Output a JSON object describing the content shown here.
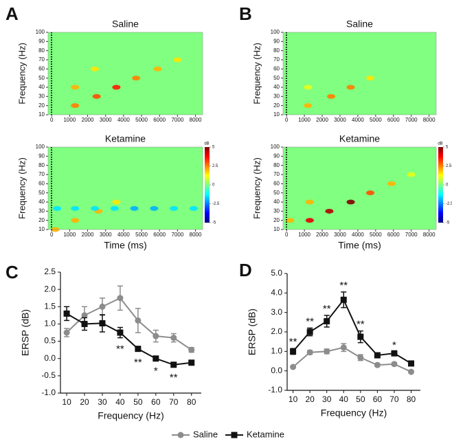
{
  "chart_data": [
    {
      "type": "heatmap",
      "panel": "A",
      "title": "Saline",
      "ylabel": "Frequency (Hz)",
      "xlim": [
        -200,
        8400
      ],
      "xticks": [
        0,
        1000,
        2000,
        3000,
        4000,
        5000,
        6000,
        7000,
        8000
      ],
      "ylim": [
        10,
        100
      ],
      "yticks": [
        10,
        20,
        30,
        40,
        50,
        60,
        70,
        80,
        90,
        100
      ],
      "clim": [
        -5,
        5
      ],
      "spots": [
        {
          "x": 1300,
          "y": 20,
          "value": 2.5
        },
        {
          "x": 1300,
          "y": 40,
          "value": 2
        },
        {
          "x": 2500,
          "y": 30,
          "value": 3
        },
        {
          "x": 3600,
          "y": 40,
          "value": 3.5
        },
        {
          "x": 4700,
          "y": 50,
          "value": 2.5
        },
        {
          "x": 5900,
          "y": 60,
          "value": 2
        },
        {
          "x": 7000,
          "y": 70,
          "value": 1.5
        },
        {
          "x": 2400,
          "y": 60,
          "value": 1.5
        }
      ]
    },
    {
      "type": "heatmap",
      "title": "Ketamine",
      "ylabel": "Frequency (Hz)",
      "xlabel": "Time (ms)",
      "xlim": [
        -200,
        8400
      ],
      "xticks": [
        0,
        1000,
        2000,
        3000,
        4000,
        5000,
        6000,
        7000,
        8000
      ],
      "ylim": [
        10,
        100
      ],
      "yticks": [
        10,
        20,
        30,
        40,
        50,
        60,
        70,
        80,
        90,
        100
      ],
      "clim": [
        -5,
        5
      ],
      "clabel": "dB",
      "cticks": [
        5,
        2.5,
        0,
        -2.5,
        -5
      ],
      "spots": [
        {
          "x": 1300,
          "y": 20,
          "value": 2
        },
        {
          "x": 2600,
          "y": 30,
          "value": 2
        },
        {
          "x": 3600,
          "y": 40,
          "value": 1.5
        },
        {
          "x": 200,
          "y": 10,
          "value": 2
        },
        {
          "x": 300,
          "y": 33,
          "value": -1.5
        },
        {
          "x": 1300,
          "y": 33,
          "value": -1.5
        },
        {
          "x": 2400,
          "y": 33,
          "value": -1.5
        },
        {
          "x": 3500,
          "y": 33,
          "value": -1.5
        },
        {
          "x": 4600,
          "y": 33,
          "value": -2
        },
        {
          "x": 5700,
          "y": 33,
          "value": -2
        },
        {
          "x": 6800,
          "y": 33,
          "value": -1.5
        },
        {
          "x": 7900,
          "y": 33,
          "value": -1.5
        }
      ]
    },
    {
      "type": "heatmap",
      "panel": "B",
      "title": "Saline",
      "ylabel": "Frequency (Hz)",
      "xlim": [
        -200,
        8400
      ],
      "xticks": [
        0,
        1000,
        2000,
        3000,
        4000,
        5000,
        6000,
        7000,
        8000
      ],
      "ylim": [
        10,
        100
      ],
      "yticks": [
        10,
        20,
        30,
        40,
        50,
        60,
        70,
        80,
        90,
        100
      ],
      "clim": [
        -5,
        5
      ],
      "spots": [
        {
          "x": 1200,
          "y": 20,
          "value": 2
        },
        {
          "x": 2500,
          "y": 30,
          "value": 2.5
        },
        {
          "x": 3600,
          "y": 40,
          "value": 2.5
        },
        {
          "x": 4700,
          "y": 50,
          "value": 1.5
        },
        {
          "x": 1200,
          "y": 40,
          "value": 1
        }
      ]
    },
    {
      "type": "heatmap",
      "title": "Ketamine",
      "ylabel": "Frequency (Hz)",
      "xlabel": "Time (ms)",
      "xlim": [
        -200,
        8400
      ],
      "xticks": [
        0,
        1000,
        2000,
        3000,
        4000,
        5000,
        6000,
        7000,
        8000
      ],
      "ylim": [
        10,
        100
      ],
      "yticks": [
        10,
        20,
        30,
        40,
        50,
        60,
        70,
        80,
        90,
        100
      ],
      "clim": [
        -5,
        5
      ],
      "clabel": "dB",
      "cticks": [
        5,
        2.5,
        0,
        -2.5,
        -5
      ],
      "spots": [
        {
          "x": 1300,
          "y": 20,
          "value": 4
        },
        {
          "x": 1300,
          "y": 40,
          "value": 2
        },
        {
          "x": 2400,
          "y": 30,
          "value": 4.5
        },
        {
          "x": 3600,
          "y": 40,
          "value": 5
        },
        {
          "x": 4700,
          "y": 50,
          "value": 3
        },
        {
          "x": 5900,
          "y": 60,
          "value": 2
        },
        {
          "x": 7000,
          "y": 70,
          "value": 1
        },
        {
          "x": 200,
          "y": 20,
          "value": 2
        }
      ]
    },
    {
      "type": "line",
      "panel": "C",
      "ylabel": "ERSP (dB)",
      "xlabel": "Frequency (Hz)",
      "x": [
        10,
        20,
        30,
        40,
        50,
        60,
        70,
        80
      ],
      "xlim": [
        6.5,
        85.5
      ],
      "xticks": [
        10,
        20,
        30,
        40,
        50,
        60,
        70,
        80
      ],
      "ylim": [
        -1,
        2.5
      ],
      "yticks": [
        2.5,
        {
          "value": 2,
          "label": "2.0"
        },
        1.5,
        {
          "value": 1,
          "label": "1.0"
        },
        0.5,
        {
          "value": 0,
          "label": "0.0"
        },
        -0.5,
        {
          "value": -1,
          "label": "-1.0"
        }
      ],
      "legend": "bottom",
      "significance": [
        null,
        null,
        null,
        "**",
        "**",
        "*",
        "**",
        null
      ],
      "significance_position": "below",
      "series": [
        {
          "name": "Saline",
          "color": "#8c8c8c",
          "marker": "circle",
          "values": [
            0.75,
            1.25,
            1.5,
            1.75,
            1.1,
            0.65,
            0.6,
            0.25
          ],
          "errors": [
            0.12,
            0.25,
            0.25,
            0.35,
            0.35,
            0.17,
            0.12,
            0.07
          ]
        },
        {
          "name": "Ketamine",
          "color": "#111111",
          "marker": "square",
          "values": [
            1.3,
            1.0,
            1.02,
            0.75,
            0.28,
            0.0,
            -0.18,
            -0.12
          ],
          "errors": [
            0.2,
            0.18,
            0.25,
            0.15,
            0.07,
            0.04,
            0.05,
            0.04
          ]
        }
      ]
    },
    {
      "type": "line",
      "panel": "D",
      "ylabel": "ERSP (dB)",
      "xlabel": "Frequency (Hz)",
      "x": [
        10,
        20,
        30,
        40,
        50,
        60,
        70,
        80
      ],
      "xlim": [
        6.5,
        85.5
      ],
      "xticks": [
        10,
        20,
        30,
        40,
        50,
        60,
        70,
        80
      ],
      "ylim": [
        -1,
        5
      ],
      "yticks": [
        {
          "value": 5,
          "label": "5.0"
        },
        {
          "value": 4,
          "label": "4.0"
        },
        {
          "value": 3,
          "label": "3.0"
        },
        {
          "value": 2,
          "label": "2.0"
        },
        {
          "value": 1,
          "label": "1.0"
        },
        {
          "value": 0,
          "label": "0.0"
        },
        {
          "value": -1,
          "label": "-1.0"
        }
      ],
      "significance": [
        "**",
        "**",
        "**",
        "**",
        "**",
        null,
        "*",
        null
      ],
      "significance_position": "above",
      "series": [
        {
          "color": "#8c8c8c",
          "marker": "circle",
          "values": [
            0.2,
            0.95,
            1.0,
            1.2,
            0.68,
            0.3,
            0.35,
            -0.05
          ],
          "errors": [
            0.05,
            0.1,
            0.12,
            0.2,
            0.15,
            0.08,
            0.08,
            0.05
          ]
        },
        {
          "color": "#111111",
          "marker": "square",
          "values": [
            1.0,
            2.0,
            2.55,
            3.65,
            1.75,
            0.8,
            0.9,
            0.38
          ],
          "errors": [
            0.15,
            0.2,
            0.3,
            0.4,
            0.3,
            0.1,
            0.08,
            0.08
          ]
        }
      ]
    }
  ]
}
